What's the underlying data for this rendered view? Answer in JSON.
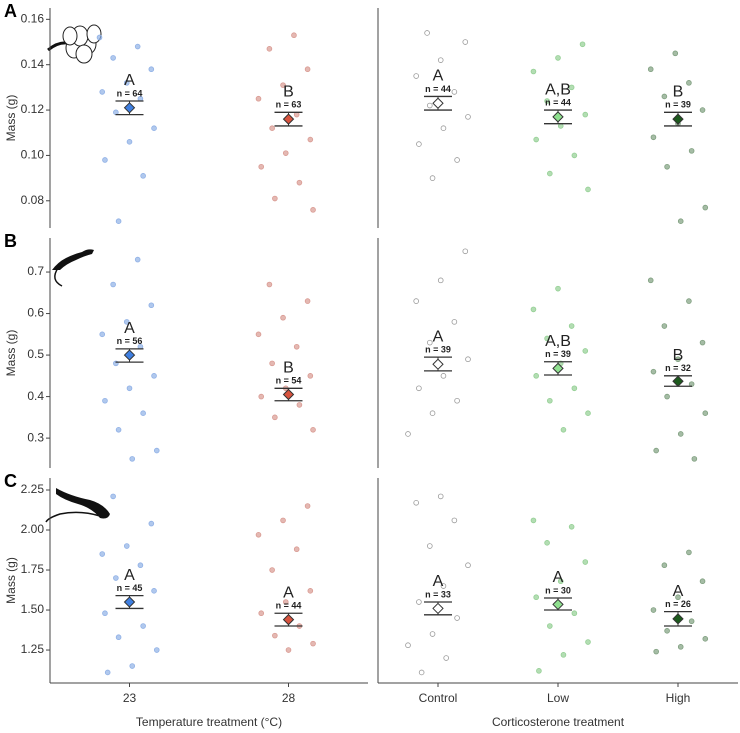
{
  "chart_data": [
    {
      "type": "strip",
      "panel_label": "A",
      "ylabel": "Mass (g)",
      "ylim": [
        0.068,
        0.165
      ],
      "yticks": [
        0.08,
        {
          "value": 0.1,
          "label": "0.10"
        },
        0.12,
        0.14,
        0.16
      ],
      "series": [
        {
          "color": "#3f7fe0",
          "point_color": "#8fb0e6",
          "mean": 0.121,
          "ci": [
            0.118,
            0.124
          ],
          "letter": "A",
          "n_label": "n = 64",
          "points": [
            0.152,
            0.148,
            0.143,
            0.138,
            0.132,
            0.128,
            0.125,
            0.119,
            0.112,
            0.106,
            0.098,
            0.091,
            0.071
          ]
        },
        {
          "color": "#d8533e",
          "point_color": "#d99a92",
          "mean": 0.116,
          "ci": [
            0.113,
            0.119
          ],
          "letter": "B",
          "n_label": "n = 63",
          "points": [
            0.153,
            0.147,
            0.138,
            0.131,
            0.125,
            0.118,
            0.112,
            0.107,
            0.101,
            0.095,
            0.088,
            0.081,
            0.076
          ]
        }
      ]
    },
    {
      "type": "strip",
      "ylim": [
        0.068,
        0.165
      ],
      "series": [
        {
          "color": "#ffffff",
          "point_color": "#9a9a9a",
          "mean": 0.123,
          "ci": [
            0.12,
            0.126
          ],
          "letter": "A",
          "n_label": "n = 44",
          "points": [
            0.154,
            0.15,
            0.142,
            0.135,
            0.128,
            0.122,
            0.117,
            0.112,
            0.105,
            0.098,
            0.09
          ]
        },
        {
          "color": "#8fe08f",
          "point_color": "#93cf93",
          "mean": 0.117,
          "ci": [
            0.114,
            0.12
          ],
          "letter": "A,B",
          "n_label": "n = 44",
          "points": [
            0.149,
            0.143,
            0.137,
            0.13,
            0.124,
            0.118,
            0.113,
            0.107,
            0.1,
            0.092,
            0.085
          ]
        },
        {
          "color": "#1d5a1d",
          "point_color": "#7f9f7f",
          "mean": 0.116,
          "ci": [
            0.113,
            0.119
          ],
          "letter": "B",
          "n_label": "n = 39",
          "points": [
            0.145,
            0.138,
            0.132,
            0.126,
            0.12,
            0.114,
            0.108,
            0.102,
            0.095,
            0.077,
            0.071
          ]
        }
      ]
    },
    {
      "type": "strip",
      "panel_label": "B",
      "ylabel": "Mass (g)",
      "ylim": [
        0.228,
        0.782
      ],
      "yticks": [
        0.3,
        0.4,
        0.5,
        0.6,
        0.7
      ],
      "series": [
        {
          "color": "#3f7fe0",
          "point_color": "#8fb0e6",
          "mean": 0.5,
          "ci": [
            0.483,
            0.515
          ],
          "letter": "A",
          "n_label": "n = 56",
          "points": [
            0.73,
            0.67,
            0.62,
            0.58,
            0.55,
            0.52,
            0.48,
            0.45,
            0.42,
            0.39,
            0.36,
            0.32,
            0.27,
            0.25
          ]
        },
        {
          "color": "#d8533e",
          "point_color": "#d99a92",
          "mean": 0.405,
          "ci": [
            0.39,
            0.42
          ],
          "letter": "B",
          "n_label": "n = 54",
          "points": [
            0.67,
            0.63,
            0.59,
            0.55,
            0.52,
            0.48,
            0.45,
            0.42,
            0.4,
            0.38,
            0.35,
            0.32
          ]
        }
      ]
    },
    {
      "type": "strip",
      "ylim": [
        0.228,
        0.782
      ],
      "series": [
        {
          "color": "#ffffff",
          "point_color": "#9a9a9a",
          "mean": 0.478,
          "ci": [
            0.462,
            0.495
          ],
          "letter": "A",
          "n_label": "n = 39",
          "points": [
            0.75,
            0.68,
            0.63,
            0.58,
            0.53,
            0.49,
            0.45,
            0.42,
            0.39,
            0.36,
            0.31
          ]
        },
        {
          "color": "#8fe08f",
          "point_color": "#93cf93",
          "mean": 0.468,
          "ci": [
            0.452,
            0.484
          ],
          "letter": "A,B",
          "n_label": "n = 39",
          "points": [
            0.66,
            0.61,
            0.57,
            0.54,
            0.51,
            0.48,
            0.45,
            0.42,
            0.39,
            0.36,
            0.32
          ]
        },
        {
          "color": "#1d5a1d",
          "point_color": "#7f9f7f",
          "mean": 0.437,
          "ci": [
            0.425,
            0.45
          ],
          "letter": "B",
          "n_label": "n = 32",
          "points": [
            0.68,
            0.63,
            0.57,
            0.53,
            0.49,
            0.46,
            0.43,
            0.4,
            0.36,
            0.31,
            0.27,
            0.25
          ]
        }
      ]
    },
    {
      "type": "strip",
      "panel_label": "C",
      "ylabel": "Mass (g)",
      "ylim": [
        1.044,
        2.325
      ],
      "yticks": [
        1.25,
        {
          "value": 1.5,
          "label": "1.50"
        },
        1.75,
        {
          "value": 2,
          "label": "2.00"
        },
        2.25
      ],
      "categories": [
        "23",
        "28"
      ],
      "xlabel": "Temperature treatment (°C)",
      "series": [
        {
          "color": "#3f7fe0",
          "point_color": "#8fb0e6",
          "mean": 1.55,
          "ci": [
            1.51,
            1.59
          ],
          "letter": "A",
          "n_label": "n = 45",
          "points": [
            2.21,
            2.04,
            1.9,
            1.85,
            1.78,
            1.7,
            1.62,
            1.55,
            1.48,
            1.4,
            1.33,
            1.25,
            1.15,
            1.11
          ]
        },
        {
          "color": "#d8533e",
          "point_color": "#d99a92",
          "mean": 1.44,
          "ci": [
            1.4,
            1.48
          ],
          "letter": "A",
          "n_label": "n = 44",
          "points": [
            2.15,
            2.06,
            1.97,
            1.88,
            1.75,
            1.62,
            1.55,
            1.48,
            1.4,
            1.34,
            1.29,
            1.25
          ]
        }
      ]
    },
    {
      "type": "strip",
      "ylim": [
        1.044,
        2.325
      ],
      "categories": [
        "Control",
        "Low",
        "High"
      ],
      "xlabel": "Corticosterone treatment",
      "series": [
        {
          "color": "#ffffff",
          "point_color": "#9a9a9a",
          "mean": 1.51,
          "ci": [
            1.47,
            1.55
          ],
          "letter": "A",
          "n_label": "n = 33",
          "points": [
            2.21,
            2.17,
            2.06,
            1.9,
            1.78,
            1.65,
            1.55,
            1.45,
            1.35,
            1.28,
            1.2,
            1.11
          ]
        },
        {
          "color": "#8fe08f",
          "point_color": "#93cf93",
          "mean": 1.535,
          "ci": [
            1.5,
            1.575
          ],
          "letter": "A",
          "n_label": "n = 30",
          "points": [
            2.06,
            2.02,
            1.92,
            1.8,
            1.68,
            1.58,
            1.48,
            1.4,
            1.3,
            1.22,
            1.12
          ]
        },
        {
          "color": "#1d5a1d",
          "point_color": "#7f9f7f",
          "mean": 1.445,
          "ci": [
            1.4,
            1.49
          ],
          "letter": "A",
          "n_label": "n = 26",
          "points": [
            1.86,
            1.78,
            1.68,
            1.58,
            1.5,
            1.43,
            1.37,
            1.32,
            1.27,
            1.24
          ]
        }
      ]
    }
  ]
}
